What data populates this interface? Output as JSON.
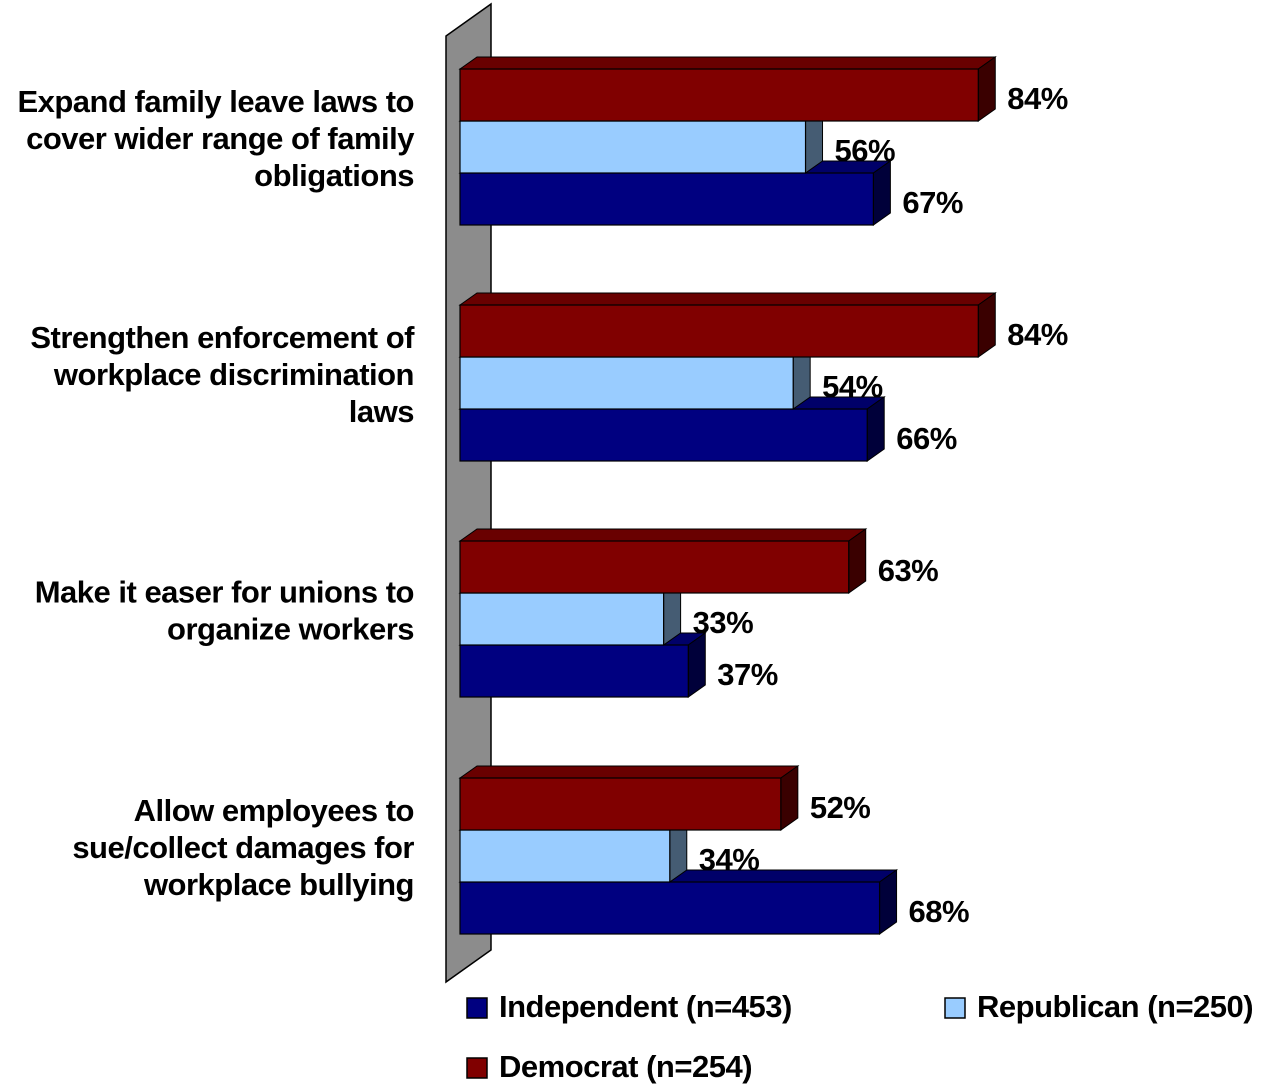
{
  "chart_data": {
    "type": "bar",
    "orientation": "horizontal",
    "style": "3d",
    "categories": [
      [
        "Expand family leave laws to",
        "cover wider range of family",
        "obligations"
      ],
      [
        "Strengthen enforcement of",
        "workplace discrimination",
        "laws"
      ],
      [
        "Make it easer for unions to",
        "organize workers"
      ],
      [
        "Allow employees to",
        "sue/collect damages for",
        "workplace bullying"
      ]
    ],
    "series": [
      {
        "name": "Democrat (n=254)",
        "color": "#800000",
        "values": [
          84,
          84,
          63,
          52
        ],
        "labels": [
          "84%",
          "84%",
          "63%",
          "52%"
        ]
      },
      {
        "name": "Republican (n=250)",
        "color": "#99CCFF",
        "values": [
          56,
          54,
          33,
          34
        ],
        "labels": [
          "56%",
          "54%",
          "33%",
          "34%"
        ]
      },
      {
        "name": "Independent (n=453)",
        "color": "#000080",
        "values": [
          67,
          66,
          37,
          68
        ],
        "labels": [
          "67%",
          "66%",
          "37%",
          "68%"
        ]
      }
    ],
    "legend": {
      "placement": "bottom",
      "items": [
        "Independent (n=453)",
        "Republican (n=250)",
        "Democrat (n=254)"
      ]
    },
    "xlim": [
      0,
      100
    ],
    "grid": false
  }
}
